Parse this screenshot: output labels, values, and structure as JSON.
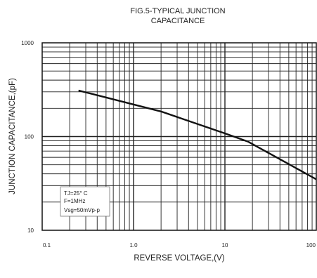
{
  "chart_data": {
    "type": "line",
    "title_lines": [
      "FIG.5-TYPICAL JUNCTION",
      "CAPACITANCE"
    ],
    "xlabel": "REVERSE VOLTAGE,(V)",
    "ylabel": "JUNCTION CAPACITANCE,(pF)",
    "x_scale": "log",
    "y_scale": "log",
    "xlim": [
      0.1,
      100
    ],
    "ylim": [
      10,
      1000
    ],
    "x_ticks": [
      {
        "value": 0.1,
        "label": "0.1"
      },
      {
        "value": 1,
        "label": "1.0"
      },
      {
        "value": 10,
        "label": "10"
      },
      {
        "value": 100,
        "label": "100"
      }
    ],
    "y_ticks": [
      {
        "value": 10,
        "label": "10"
      },
      {
        "value": 100,
        "label": "100"
      },
      {
        "value": 1000,
        "label": "1000"
      }
    ],
    "grid": true,
    "series": [
      {
        "x": [
          0.25,
          2,
          10,
          18,
          100
        ],
        "y": [
          310,
          185,
          108,
          88,
          35
        ]
      }
    ],
    "annotation": [
      "TJ=25° C",
      "F=1MHz",
      "Vsg=50mVp-p"
    ]
  }
}
